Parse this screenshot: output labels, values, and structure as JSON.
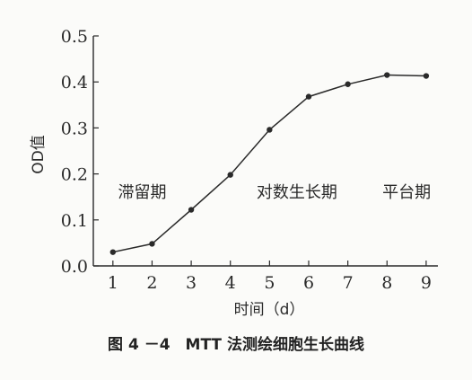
{
  "chart_data": {
    "type": "line",
    "title": "",
    "xlabel": "时间（d）",
    "ylabel": "OD值",
    "x": [
      1,
      2,
      3,
      4,
      5,
      6,
      7,
      8,
      9
    ],
    "series": [
      {
        "values": [
          0.03,
          0.048,
          0.122,
          0.198,
          0.296,
          0.368,
          0.395,
          0.415,
          0.413
        ]
      }
    ],
    "xlim": [
      0.5,
      9.3
    ],
    "ylim": [
      0,
      0.5
    ],
    "xticks": [
      "1",
      "2",
      "3",
      "4",
      "5",
      "6",
      "7",
      "8",
      "9"
    ],
    "yticks": [
      "0.0",
      "0.1",
      "0.2",
      "0.3",
      "0.4",
      "0.5"
    ],
    "grid": false,
    "annotations": [
      {
        "text": "滞留期",
        "x": 1.75,
        "y": 0.16
      },
      {
        "text": "对数生长期",
        "x": 5.7,
        "y": 0.16
      },
      {
        "text": "平台期",
        "x": 8.5,
        "y": 0.16
      }
    ]
  },
  "caption": "图 4 －4　MTT 法测绘细胞生长曲线"
}
